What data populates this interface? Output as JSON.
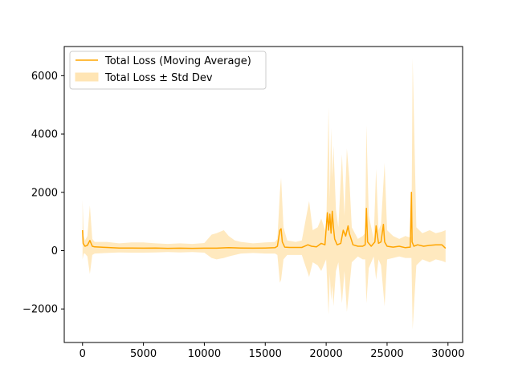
{
  "chart_data": {
    "type": "line",
    "title": "",
    "xlabel": "",
    "ylabel": "",
    "xlim": [
      -1500,
      31200
    ],
    "ylim": [
      -3150,
      7000
    ],
    "xticks": [
      0,
      5000,
      10000,
      15000,
      20000,
      25000,
      30000
    ],
    "xtick_labels": [
      "0",
      "5000",
      "10000",
      "15000",
      "20000",
      "25000",
      "30000"
    ],
    "yticks": [
      -2000,
      0,
      2000,
      4000,
      6000
    ],
    "ytick_labels": [
      "−2000",
      "0",
      "2000",
      "4000",
      "6000"
    ],
    "grid": false,
    "legend_position": "upper-left",
    "colors": {
      "line": "#FFA500",
      "band": "#FFE5B4"
    },
    "series": [
      {
        "name": "Total Loss (Moving Average)",
        "kind": "line",
        "x": [
          0,
          50,
          200,
          400,
          600,
          800,
          1000,
          2000,
          3000,
          4000,
          5000,
          6000,
          7000,
          8000,
          9000,
          10000,
          11000,
          12000,
          13000,
          14000,
          15000,
          15800,
          16000,
          16200,
          16300,
          16400,
          16600,
          17000,
          18000,
          18500,
          18800,
          19200,
          19600,
          19900,
          20100,
          20200,
          20300,
          20400,
          20500,
          20600,
          20700,
          20900,
          21200,
          21400,
          21600,
          21800,
          21900,
          22200,
          22600,
          23000,
          23200,
          23300,
          23400,
          23700,
          24000,
          24100,
          24300,
          24500,
          24700,
          24800,
          25000,
          25500,
          26000,
          26500,
          26900,
          27000,
          27050,
          27200,
          27500,
          28000,
          28500,
          29000,
          29500,
          29800
        ],
        "y": [
          700,
          250,
          150,
          180,
          350,
          150,
          130,
          110,
          90,
          90,
          85,
          90,
          80,
          85,
          80,
          85,
          85,
          100,
          90,
          85,
          90,
          100,
          150,
          700,
          750,
          300,
          120,
          110,
          110,
          200,
          150,
          130,
          250,
          200,
          1300,
          700,
          1250,
          600,
          1350,
          800,
          400,
          200,
          250,
          700,
          500,
          850,
          600,
          200,
          150,
          150,
          200,
          1450,
          300,
          150,
          300,
          850,
          250,
          300,
          900,
          300,
          150,
          120,
          150,
          100,
          120,
          2000,
          300,
          150,
          200,
          150,
          180,
          200,
          200,
          80
        ]
      },
      {
        "name": "Total Loss ± Std Dev",
        "kind": "band",
        "x": [
          0,
          100,
          200,
          400,
          600,
          800,
          1000,
          2000,
          3000,
          4000,
          5000,
          6000,
          7000,
          8000,
          9000,
          10000,
          10600,
          11000,
          11600,
          12000,
          12500,
          13000,
          14000,
          15000,
          15800,
          16000,
          16200,
          16300,
          16500,
          16800,
          17500,
          18000,
          18600,
          18900,
          19300,
          19600,
          20000,
          20200,
          20300,
          20400,
          20500,
          20600,
          20800,
          21000,
          21300,
          21500,
          21700,
          21900,
          22100,
          22600,
          23000,
          23200,
          23300,
          23500,
          23900,
          24100,
          24300,
          24500,
          24800,
          25000,
          25500,
          26000,
          26500,
          26900,
          27000,
          27100,
          27400,
          27900,
          28500,
          29000,
          29500,
          29800
        ],
        "upper": [
          1750,
          500,
          350,
          500,
          1550,
          400,
          300,
          300,
          250,
          280,
          280,
          250,
          230,
          250,
          230,
          260,
          550,
          600,
          700,
          500,
          350,
          300,
          250,
          280,
          300,
          400,
          2000,
          2500,
          800,
          350,
          300,
          350,
          1700,
          700,
          800,
          1100,
          600,
          4900,
          1800,
          4200,
          2500,
          3600,
          1400,
          800,
          3300,
          1200,
          3500,
          2500,
          800,
          400,
          500,
          600,
          4300,
          1200,
          400,
          2800,
          700,
          900,
          3000,
          700,
          500,
          400,
          500,
          450,
          500,
          6600,
          800,
          600,
          700,
          600,
          650,
          700
        ],
        "lower": [
          -300,
          -100,
          -100,
          -200,
          -800,
          -150,
          -100,
          -80,
          -60,
          -70,
          -70,
          -60,
          -50,
          -60,
          -50,
          -70,
          -250,
          -300,
          -250,
          -200,
          -150,
          -100,
          -80,
          -100,
          -100,
          -150,
          -1100,
          -1000,
          -300,
          -150,
          -150,
          -150,
          -900,
          -400,
          -500,
          -700,
          -300,
          -2200,
          -800,
          -1700,
          -1200,
          -1900,
          -700,
          -400,
          -1800,
          -700,
          -2100,
          -1300,
          -400,
          -200,
          -300,
          -300,
          -1800,
          -600,
          -200,
          -1000,
          -300,
          -500,
          -1900,
          -300,
          -250,
          -200,
          -250,
          -250,
          -250,
          -2700,
          -500,
          -300,
          -400,
          -300,
          -350,
          -400
        ]
      }
    ]
  }
}
